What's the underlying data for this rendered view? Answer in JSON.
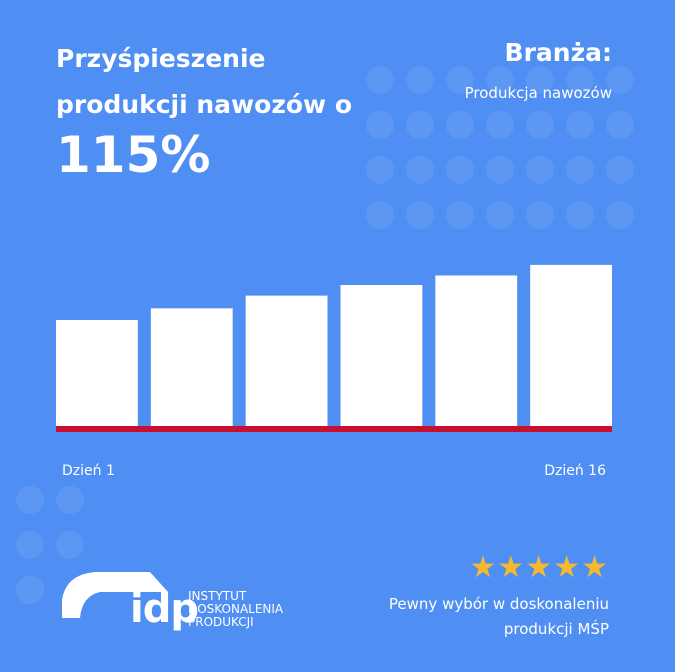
{
  "header": {
    "title": "Przyśpieszenie produkcji nawozów o",
    "headline": "115%",
    "industry_label": "Branża:",
    "industry": "Produkcja nawozów"
  },
  "chart_data": {
    "type": "bar",
    "categories": [
      "Dzień 1",
      null,
      null,
      null,
      null,
      "Dzień 16"
    ],
    "values": [
      100,
      111,
      123,
      133,
      142,
      152
    ],
    "color": "#ffffff",
    "baseline_color": "#c8102e"
  },
  "footer": {
    "stars": "★★★★★",
    "tagline": "Pewny wybór w doskonaleniu produkcji MŚP",
    "logo": {
      "mark": "idp",
      "lines": [
        "INSTYTUT",
        "DOSKONALENIA",
        "PRODUKCJI"
      ]
    }
  }
}
